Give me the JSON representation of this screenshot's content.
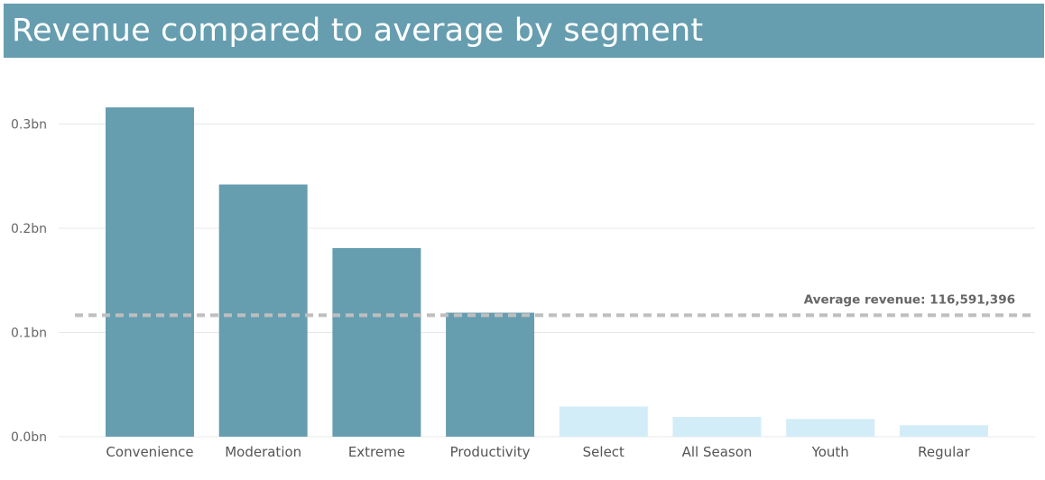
{
  "title": "Revenue compared to average by segment",
  "colors": {
    "header_bg": "#669eb0",
    "above_average": "#669eb0",
    "below_average": "#d2edf7",
    "average_line": "#bfbfbf",
    "gridline": "#e8e8e8"
  },
  "chart_data": {
    "type": "bar",
    "title": "Revenue compared to average by segment",
    "xlabel": "",
    "ylabel": "",
    "categories": [
      "Convenience",
      "Moderation",
      "Extreme",
      "Productivity",
      "Select",
      "All Season",
      "Youth",
      "Regular"
    ],
    "values": [
      316000000,
      242000000,
      181000000,
      119000000,
      29000000,
      19000000,
      17000000,
      11000000
    ],
    "ylim": [
      0,
      316000000
    ],
    "yticks": [
      0,
      100000000,
      200000000,
      300000000
    ],
    "ytick_labels": [
      "0.0bn",
      "0.1bn",
      "0.2bn",
      "0.3bn"
    ],
    "grid": true,
    "legend": "none",
    "reference_line": {
      "value": 116591396,
      "label": "Average revenue: 116,591,396"
    }
  }
}
